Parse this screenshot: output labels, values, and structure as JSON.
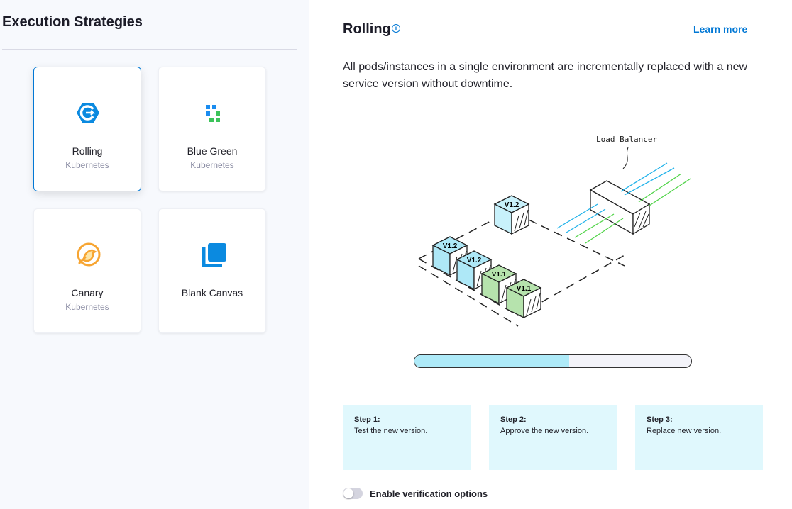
{
  "sidebar": {
    "title": "Execution Strategies",
    "cards": [
      {
        "name": "Rolling",
        "subtitle": "Kubernetes",
        "icon": "rolling-icon",
        "selected": true
      },
      {
        "name": "Blue Green",
        "subtitle": "Kubernetes",
        "icon": "blue-green-icon"
      },
      {
        "name": "Canary",
        "subtitle": "Kubernetes",
        "icon": "canary-icon"
      },
      {
        "name": "Blank Canvas",
        "subtitle": "",
        "icon": "blank-canvas-icon"
      }
    ]
  },
  "main": {
    "title": "Rolling",
    "info_icon": "i",
    "learn_more": "Learn more",
    "description": "All pods/instances in a single environment are incrementally replaced with a new service version without downtime.",
    "diagram": {
      "load_balancer_label": "Load Balancer",
      "pods": [
        "V1.2",
        "V1.2",
        "V1.2",
        "V1.1",
        "V1.1"
      ]
    },
    "progress": 0.56,
    "steps": [
      {
        "title": "Step 1:",
        "text": "Test the new version."
      },
      {
        "title": "Step 2:",
        "text": "Approve the new version."
      },
      {
        "title": "Step 3:",
        "text": "Replace new version."
      }
    ],
    "verification_toggle": {
      "label": "Enable verification options",
      "enabled": false
    }
  },
  "colors": {
    "accent": "#0278d5",
    "new_version": "#aee8f7",
    "old_version": "#b6e3ad",
    "step_bg": "#e0f8fd"
  }
}
